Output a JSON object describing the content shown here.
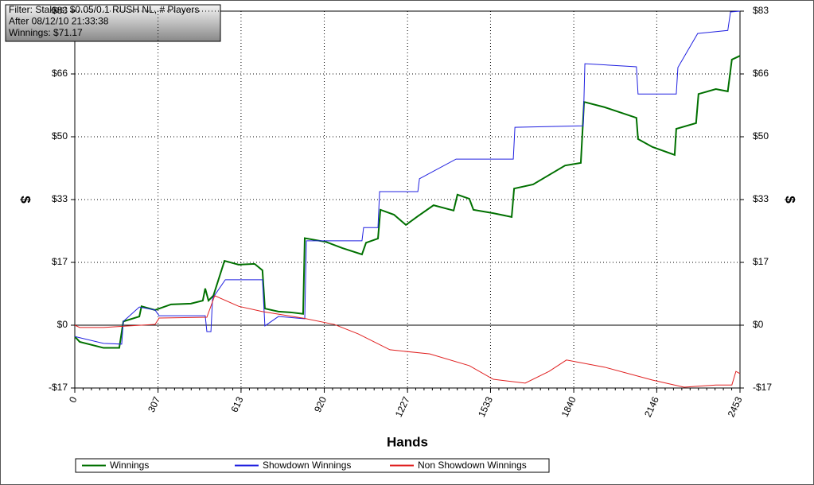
{
  "chart_data": {
    "type": "line",
    "annotations": [
      "Filter: Stakes: $0.05/0.1 RUSH NL, # Players",
      "After 08/12/10 21:33:38",
      "Winnings: $71.17"
    ],
    "x_label": "Hands",
    "y_label": "$",
    "xlim": [
      0,
      2453
    ],
    "xticks": [
      0,
      307,
      613,
      920,
      1227,
      1533,
      1840,
      2146,
      2453
    ],
    "ylim": [
      -16.6,
      83
    ],
    "yticks": [
      {
        "value": -16.6,
        "label": "-$17"
      },
      {
        "value": 0,
        "label": "$0"
      },
      {
        "value": 16.6,
        "label": "$17"
      },
      {
        "value": 33.2,
        "label": "$33"
      },
      {
        "value": 49.8,
        "label": "$50"
      },
      {
        "value": 66.4,
        "label": "$66"
      },
      {
        "value": 83,
        "label": "$83"
      }
    ],
    "grid": true,
    "legend": "bottom",
    "series": [
      {
        "name": "Winnings",
        "color": "#007000",
        "x": [
          0,
          18,
          106,
          164,
          179,
          238,
          246,
          296,
          355,
          428,
          472,
          481,
          493,
          511,
          552,
          604,
          663,
          692,
          701,
          751,
          795,
          842,
          848,
          927,
          986,
          1059,
          1074,
          1118,
          1127,
          1177,
          1221,
          1265,
          1323,
          1397,
          1411,
          1455,
          1470,
          1543,
          1611,
          1620,
          1690,
          1749,
          1808,
          1866,
          1878,
          1954,
          2071,
          2077,
          2130,
          2212,
          2218,
          2291,
          2300,
          2364,
          2408,
          2423,
          2453
        ],
        "values": [
          -3,
          -4.4,
          -6,
          -6,
          1,
          2.3,
          5,
          4,
          5.5,
          5.7,
          6.5,
          9.7,
          6.5,
          7.8,
          17,
          16,
          16.2,
          14.5,
          4.4,
          3.6,
          3.4,
          3,
          23,
          22,
          20.4,
          18.7,
          21.8,
          22.9,
          30.5,
          29.2,
          26.5,
          28.8,
          31.7,
          30.3,
          34.5,
          33.4,
          30.5,
          29.6,
          28.6,
          36.1,
          37.2,
          39.7,
          42.2,
          42.9,
          59,
          57.6,
          54.8,
          49.2,
          47.1,
          45,
          51.9,
          53.4,
          61.1,
          62.4,
          61.8,
          70.2,
          71.2
        ]
      },
      {
        "name": "Showdown Winnings",
        "color": "#2020e0",
        "x": [
          0,
          106,
          173,
          179,
          238,
          296,
          311,
          481,
          487,
          502,
          508,
          555,
          692,
          701,
          751,
          848,
          854,
          1059,
          1065,
          1118,
          1124,
          1265,
          1271,
          1406,
          1617,
          1623,
          1875,
          1881,
          2071,
          2077,
          2218,
          2224,
          2297,
          2408,
          2418,
          2453
        ],
        "values": [
          -3,
          -4.8,
          -5,
          1,
          4.8,
          4,
          2.5,
          2.5,
          -1.7,
          -1.7,
          7.1,
          12,
          12,
          -0.2,
          2.3,
          1.7,
          22.3,
          22.3,
          25.8,
          25.8,
          35.3,
          35.3,
          38.7,
          43.9,
          43.9,
          52.3,
          52.7,
          69.1,
          68.3,
          61.1,
          61.1,
          68.1,
          77.1,
          77.9,
          82.8,
          83
        ]
      },
      {
        "name": "Non Showdown Winnings",
        "color": "#e02020",
        "x": [
          0,
          18,
          106,
          194,
          296,
          311,
          487,
          516,
          604,
          692,
          839,
          957,
          1045,
          1162,
          1309,
          1455,
          1543,
          1661,
          1749,
          1813,
          1954,
          2130,
          2247,
          2364,
          2423,
          2438,
          2453
        ],
        "values": [
          0,
          -0.6,
          -0.6,
          -0.2,
          0.2,
          1.9,
          2.1,
          7.8,
          5,
          3.6,
          1.9,
          0.2,
          -2.3,
          -6.5,
          -7.6,
          -10.7,
          -14.3,
          -15.3,
          -12.2,
          -9.2,
          -11.1,
          -14.5,
          -16.4,
          -15.8,
          -15.8,
          -12.2,
          -12.8
        ]
      }
    ]
  }
}
